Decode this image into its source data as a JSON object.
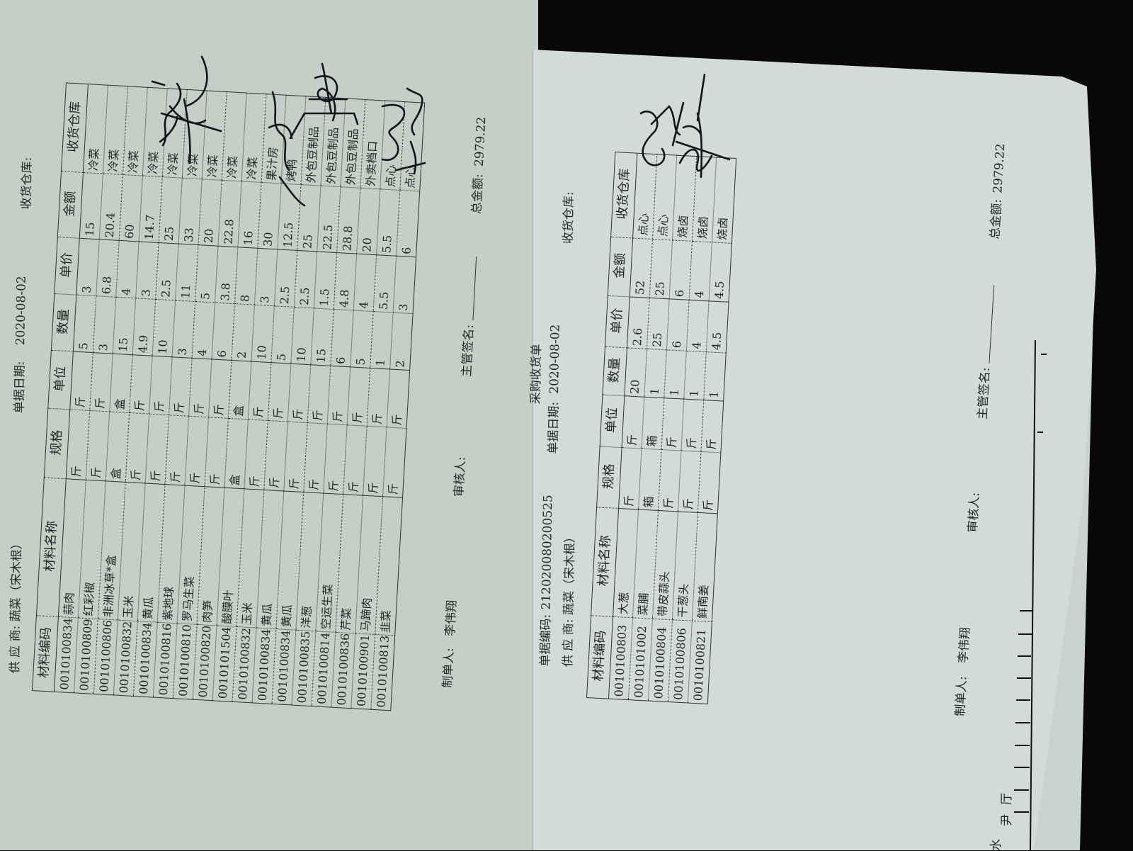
{
  "left_doc": {
    "supplier_label": "供 应 商:",
    "supplier": "蔬菜（宋木根）",
    "date_label": "单据日期:",
    "date": "2020-08-02",
    "warehouse_label": "收货仓库:",
    "columns": [
      "材料编码",
      "材料名称",
      "规格",
      "单位",
      "数量",
      "单价",
      "金额",
      "收货仓库"
    ],
    "rows": [
      [
        "0010100834",
        "蒜肉",
        "斤",
        "斤",
        "5",
        "3",
        "15",
        "冷菜"
      ],
      [
        "0010100809",
        "红彩椒",
        "斤",
        "斤",
        "3",
        "6.8",
        "20.4",
        "冷菜"
      ],
      [
        "0010100806",
        "非洲冰草*盒",
        "盒",
        "盒",
        "15",
        "4",
        "60",
        "冷菜"
      ],
      [
        "0010100832",
        "玉米",
        "斤",
        "斤",
        "4.9",
        "3",
        "14.7",
        "冷菜"
      ],
      [
        "0010100834",
        "黄瓜",
        "斤",
        "斤",
        "10",
        "2.5",
        "25",
        "冷菜"
      ],
      [
        "0010100816",
        "紫地球",
        "斤",
        "斤",
        "3",
        "11",
        "33",
        "冷菜"
      ],
      [
        "0010100810",
        "罗马生菜",
        "斤",
        "斤",
        "4",
        "5",
        "20",
        "冷菜"
      ],
      [
        "0010100820",
        "肉笋",
        "斤",
        "斤",
        "6",
        "3.8",
        "22.8",
        "冷菜"
      ],
      [
        "0010101504",
        "酸膜叶",
        "盒",
        "盒",
        "2",
        "8",
        "16",
        "冷菜"
      ],
      [
        "0010100832",
        "玉米",
        "斤",
        "斤",
        "10",
        "3",
        "30",
        "果汁房"
      ],
      [
        "0010100834",
        "黄瓜",
        "斤",
        "斤",
        "5",
        "2.5",
        "12.5",
        "烤鸭"
      ],
      [
        "0010100834",
        "黄瓜",
        "斤",
        "斤",
        "10",
        "2.5",
        "25",
        "外包豆制品"
      ],
      [
        "0010100835",
        "洋葱",
        "斤",
        "斤",
        "15",
        "1.5",
        "22.5",
        "外包豆制品"
      ],
      [
        "0010100814",
        "空运生菜",
        "斤",
        "斤",
        "6",
        "4.8",
        "28.8",
        "外包豆制品"
      ],
      [
        "0010100836",
        "芹菜",
        "斤",
        "斤",
        "5",
        "4",
        "20",
        "外卖档口"
      ],
      [
        "0010100901",
        "马蹄肉",
        "斤",
        "斤",
        "1",
        "5.5",
        "5.5",
        "点心"
      ],
      [
        "0010100813",
        "韭菜",
        "斤",
        "斤",
        "2",
        "3",
        "6",
        "点心"
      ]
    ],
    "footer": {
      "maker_label": "制单人:",
      "maker": "李伟翔",
      "reviewer_label": "审核人:",
      "supervisor_label": "主管签名:",
      "total_label": "总金额:",
      "total": "2979.22"
    }
  },
  "right_doc": {
    "title": "采购收货单",
    "doc_no_label": "单据编码:",
    "doc_no": "212020080200525",
    "date_label": "单据日期:",
    "date": "2020-08-02",
    "supplier_label": "供 应 商:",
    "supplier": "蔬菜（宋木根）",
    "warehouse_label": "收货仓库:",
    "columns": [
      "材料编码",
      "材料名称",
      "规格",
      "单位",
      "数量",
      "单价",
      "金额",
      "收货仓库"
    ],
    "rows": [
      [
        "0010100803",
        "大葱",
        "斤",
        "斤",
        "20",
        "2.6",
        "52",
        "点心"
      ],
      [
        "0010101002",
        "菜脯",
        "箱",
        "箱",
        "1",
        "25",
        "25",
        "点心"
      ],
      [
        "0010100804",
        "带皮蒜头",
        "斤",
        "斤",
        "1",
        "6",
        "6",
        "烧卤"
      ],
      [
        "0010100806",
        "干葱头",
        "斤",
        "斤",
        "1",
        "4",
        "4",
        "烧卤"
      ],
      [
        "0010100821",
        "鲜南姜",
        "斤",
        "斤",
        "1",
        "4.5",
        "4.5",
        "烧卤"
      ]
    ],
    "footer": {
      "maker_label": "制单人:",
      "maker": "李伟翔",
      "reviewer_label": "审核人:",
      "supervisor_label": "主管签名:",
      "total_label": "总金额:",
      "total": "2979.22"
    }
  },
  "under_sheet": {
    "chars": [
      "厅",
      "尹",
      "水"
    ]
  },
  "colors": {
    "paper_left": "#c6d1ca",
    "paper_right": "#d3dcd6",
    "ink": "#1d2422",
    "pen": "#14151c",
    "background": "#070807"
  }
}
